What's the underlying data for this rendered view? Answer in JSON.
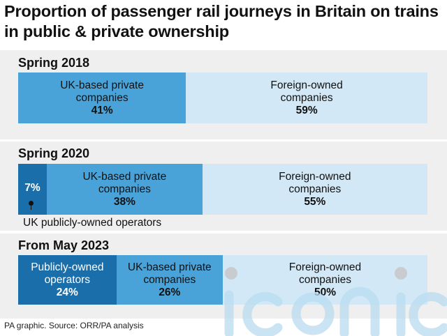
{
  "title": "Proportion of passenger rail journeys in Britain on trains in public & private ownership",
  "source": "PA graphic. Source: ORR/PA analysis",
  "watermark": "iconic",
  "colors": {
    "public": "#1a6faa",
    "uk_private": "#4aa3d8",
    "foreign": "#d3e8f6",
    "panel": "#efefef"
  },
  "chart_data": [
    {
      "type": "bar",
      "title": "Spring 2018",
      "segments": [
        {
          "label": "UK-based private companies",
          "label_lines": [
            "UK-based private",
            "companies"
          ],
          "value": 41,
          "display": "41%"
        },
        {
          "label": "Foreign-owned companies",
          "label_lines": [
            "Foreign-owned",
            "companies"
          ],
          "value": 59,
          "display": "59%"
        }
      ]
    },
    {
      "type": "bar",
      "title": "Spring 2020",
      "segments": [
        {
          "label": "UK publicly-owned operators",
          "label_lines": [],
          "value": 7,
          "display": "7%"
        },
        {
          "label": "UK-based private companies",
          "label_lines": [
            "UK-based private",
            "companies"
          ],
          "value": 38,
          "display": "38%"
        },
        {
          "label": "Foreign-owned companies",
          "label_lines": [
            "Foreign-owned",
            "companies"
          ],
          "value": 55,
          "display": "55%"
        }
      ],
      "callout": "UK publicly-owned operators"
    },
    {
      "type": "bar",
      "title": "From May 2023",
      "segments": [
        {
          "label": "Publicly-owned operators",
          "label_lines": [
            "Publicly-owned",
            "operators"
          ],
          "value": 24,
          "display": "24%"
        },
        {
          "label": "UK-based private companies",
          "label_lines": [
            "UK-based private",
            "companies"
          ],
          "value": 26,
          "display": "26%"
        },
        {
          "label": "Foreign-owned companies",
          "label_lines": [
            "Foreign-owned",
            "companies"
          ],
          "value": 50,
          "display": "50%"
        }
      ]
    }
  ]
}
